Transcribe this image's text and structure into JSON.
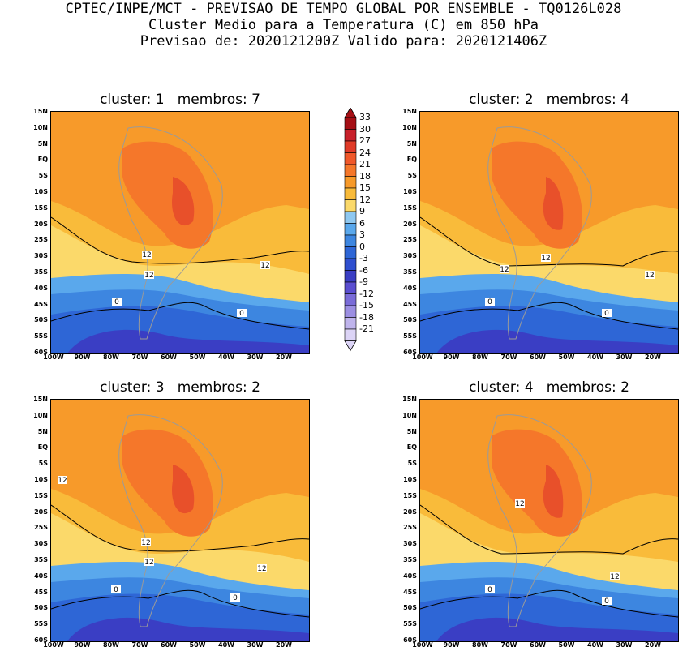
{
  "header": {
    "line1": "CPTEC/INPE/MCT - PREVISAO DE TEMPO GLOBAL POR ENSEMBLE - TQ0126L028",
    "line2": "Cluster Medio para a Temperatura (C) em 850 hPa",
    "line3": "Previsao de: 2020121200Z    Valido para: 2020121406Z"
  },
  "panels": [
    {
      "title": "cluster: 1   membros: 7",
      "contour_labels": [
        "12",
        "12",
        "12",
        "0",
        "0"
      ]
    },
    {
      "title": "cluster: 2   membros: 4",
      "contour_labels": [
        "12",
        "12",
        "12",
        "0",
        "0"
      ]
    },
    {
      "title": "cluster: 3   membros: 2",
      "contour_labels": [
        "12",
        "12",
        "12",
        "12",
        "0",
        "0"
      ]
    },
    {
      "title": "cluster: 4   membros: 2",
      "contour_labels": [
        "12",
        "12",
        "0",
        "0"
      ]
    }
  ],
  "axes": {
    "lat_labels": [
      "15N",
      "10N",
      "5N",
      "EQ",
      "5S",
      "10S",
      "15S",
      "20S",
      "25S",
      "30S",
      "35S",
      "40S",
      "45S",
      "50S",
      "55S",
      "60S"
    ],
    "lon_labels": [
      "100W",
      "90W",
      "80W",
      "70W",
      "60W",
      "50W",
      "40W",
      "30W",
      "20W"
    ]
  },
  "colorbar": {
    "labels": [
      "33",
      "30",
      "27",
      "24",
      "21",
      "18",
      "15",
      "12",
      "9",
      "6",
      "3",
      "0",
      "-3",
      "-6",
      "-9",
      "-12",
      "-15",
      "-18",
      "-21"
    ],
    "colors": [
      "#a50f15",
      "#c8202a",
      "#e03a28",
      "#f0582a",
      "#f5772a",
      "#f79a2a",
      "#f9bb3a",
      "#fbd96a",
      "#8fc8f0",
      "#5aa8ec",
      "#3d86e0",
      "#2e66d6",
      "#2f4fcf",
      "#3a3ec4",
      "#5a4ed0",
      "#7a6cd8",
      "#9c8fe2",
      "#bfb4ec",
      "#dcd4f6"
    ]
  },
  "colors": {
    "warm1": "#f5772a",
    "warm2": "#f79a2a",
    "mid": "#f9bb3a",
    "yellow": "#fbd96a",
    "cool1": "#5aa8ec",
    "cool2": "#3d86e0",
    "cool3": "#2e66d6",
    "cool4": "#3a3ec4"
  }
}
